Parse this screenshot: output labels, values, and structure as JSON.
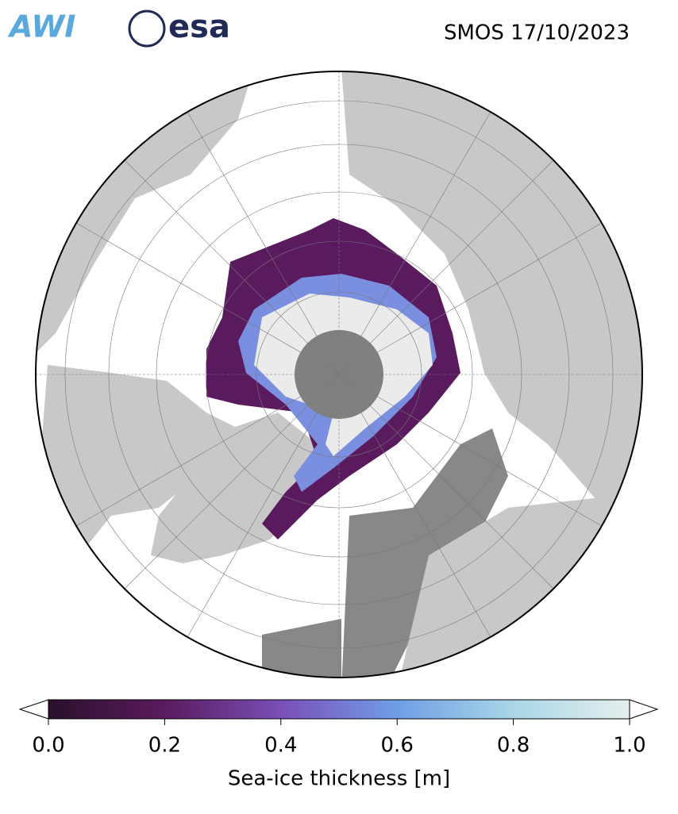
{
  "header": {
    "logos": [
      "AWI",
      "esa"
    ],
    "title": "SMOS 17/10/2023"
  },
  "colorbar": {
    "label": "Sea-ice thickness [m]",
    "lim": [
      0,
      1
    ],
    "ticks": [
      {
        "value": 0,
        "label": "0.0"
      },
      {
        "value": 0.2,
        "label": "0.2"
      },
      {
        "value": 0.4,
        "label": "0.4"
      },
      {
        "value": 0.6,
        "label": "0.6"
      },
      {
        "value": 0.8,
        "label": "0.8"
      },
      {
        "value": 1,
        "label": "1.0"
      }
    ],
    "colors": [
      "#2a0f2b",
      "#5a1b5e",
      "#7a4fb8",
      "#6f9ee6",
      "#a9d6e6",
      "#e6eeee"
    ]
  }
}
